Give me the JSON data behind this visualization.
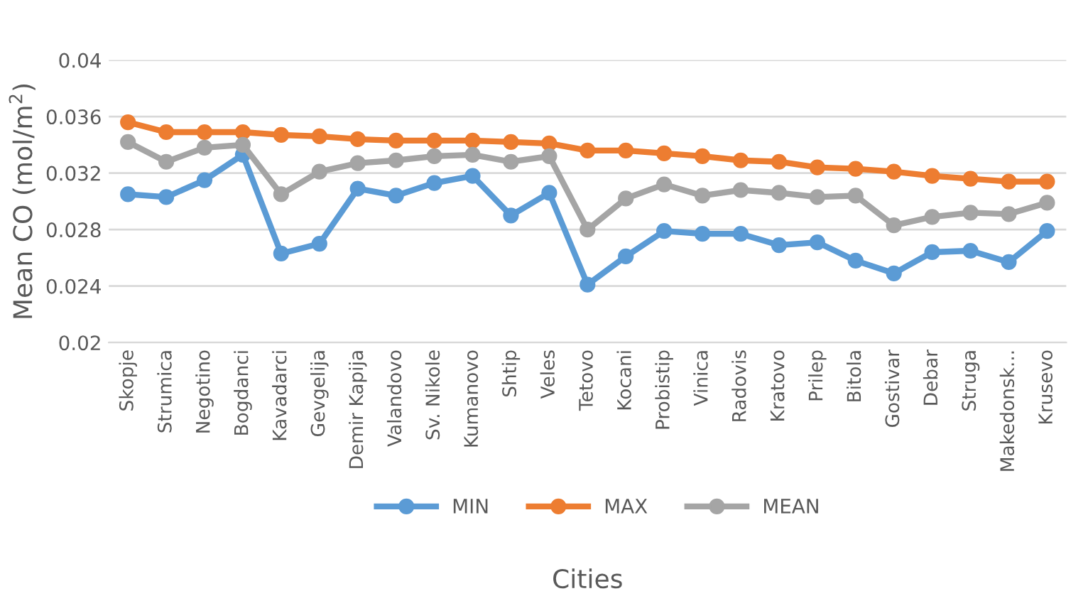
{
  "chart_data": {
    "type": "line",
    "xlabel": "Cities",
    "ylabel": "Mean CO (mol/m$^{2}$)",
    "categories": [
      "Skopje",
      "Strumica",
      "Negotino",
      "Bogdanci",
      "Kavadarci",
      "Gevgelija",
      "Demir Kapija",
      "Valandovo",
      "Sv. Nikole",
      "Kumanovo",
      "Shtip",
      "Veles",
      "Tetovo",
      "Kocani",
      "Probistip",
      "Vinica",
      "Radovis",
      "Kratovo",
      "Prilep",
      "Bitola",
      "Gostivar",
      "Debar",
      "Struga",
      "Makedonsk...",
      "Krusevo"
    ],
    "series": [
      {
        "name": "MIN",
        "color": "#5b9bd5",
        "values": [
          0.0305,
          0.0303,
          0.0315,
          0.0333,
          0.0263,
          0.027,
          0.0309,
          0.0304,
          0.0313,
          0.0318,
          0.029,
          0.0306,
          0.0241,
          0.0261,
          0.0279,
          0.0277,
          0.0277,
          0.0269,
          0.0271,
          0.0258,
          0.0249,
          0.0264,
          0.0265,
          0.0257,
          0.0279
        ]
      },
      {
        "name": "MAX",
        "color": "#ed7d31",
        "values": [
          0.0356,
          0.0349,
          0.0349,
          0.0349,
          0.0347,
          0.0346,
          0.0344,
          0.0343,
          0.0343,
          0.0343,
          0.0342,
          0.0341,
          0.0336,
          0.0336,
          0.0334,
          0.0332,
          0.0329,
          0.0328,
          0.0324,
          0.0323,
          0.0321,
          0.0318,
          0.0316,
          0.0314,
          0.0314
        ]
      },
      {
        "name": "MEAN",
        "color": "#a5a5a5",
        "values": [
          0.0342,
          0.0328,
          0.0338,
          0.034,
          0.0305,
          0.0321,
          0.0327,
          0.0329,
          0.0332,
          0.0333,
          0.0328,
          0.0332,
          0.028,
          0.0302,
          0.0312,
          0.0304,
          0.0308,
          0.0306,
          0.0303,
          0.0304,
          0.0283,
          0.0289,
          0.0292,
          0.0291,
          0.0299
        ]
      }
    ],
    "ylim": [
      0.02,
      0.04
    ],
    "yticks": [
      0.02,
      0.024,
      0.028,
      0.032,
      0.036,
      0.04
    ],
    "grid": "y",
    "legend": "bottom",
    "marker": "circle",
    "line_style": "solid"
  }
}
